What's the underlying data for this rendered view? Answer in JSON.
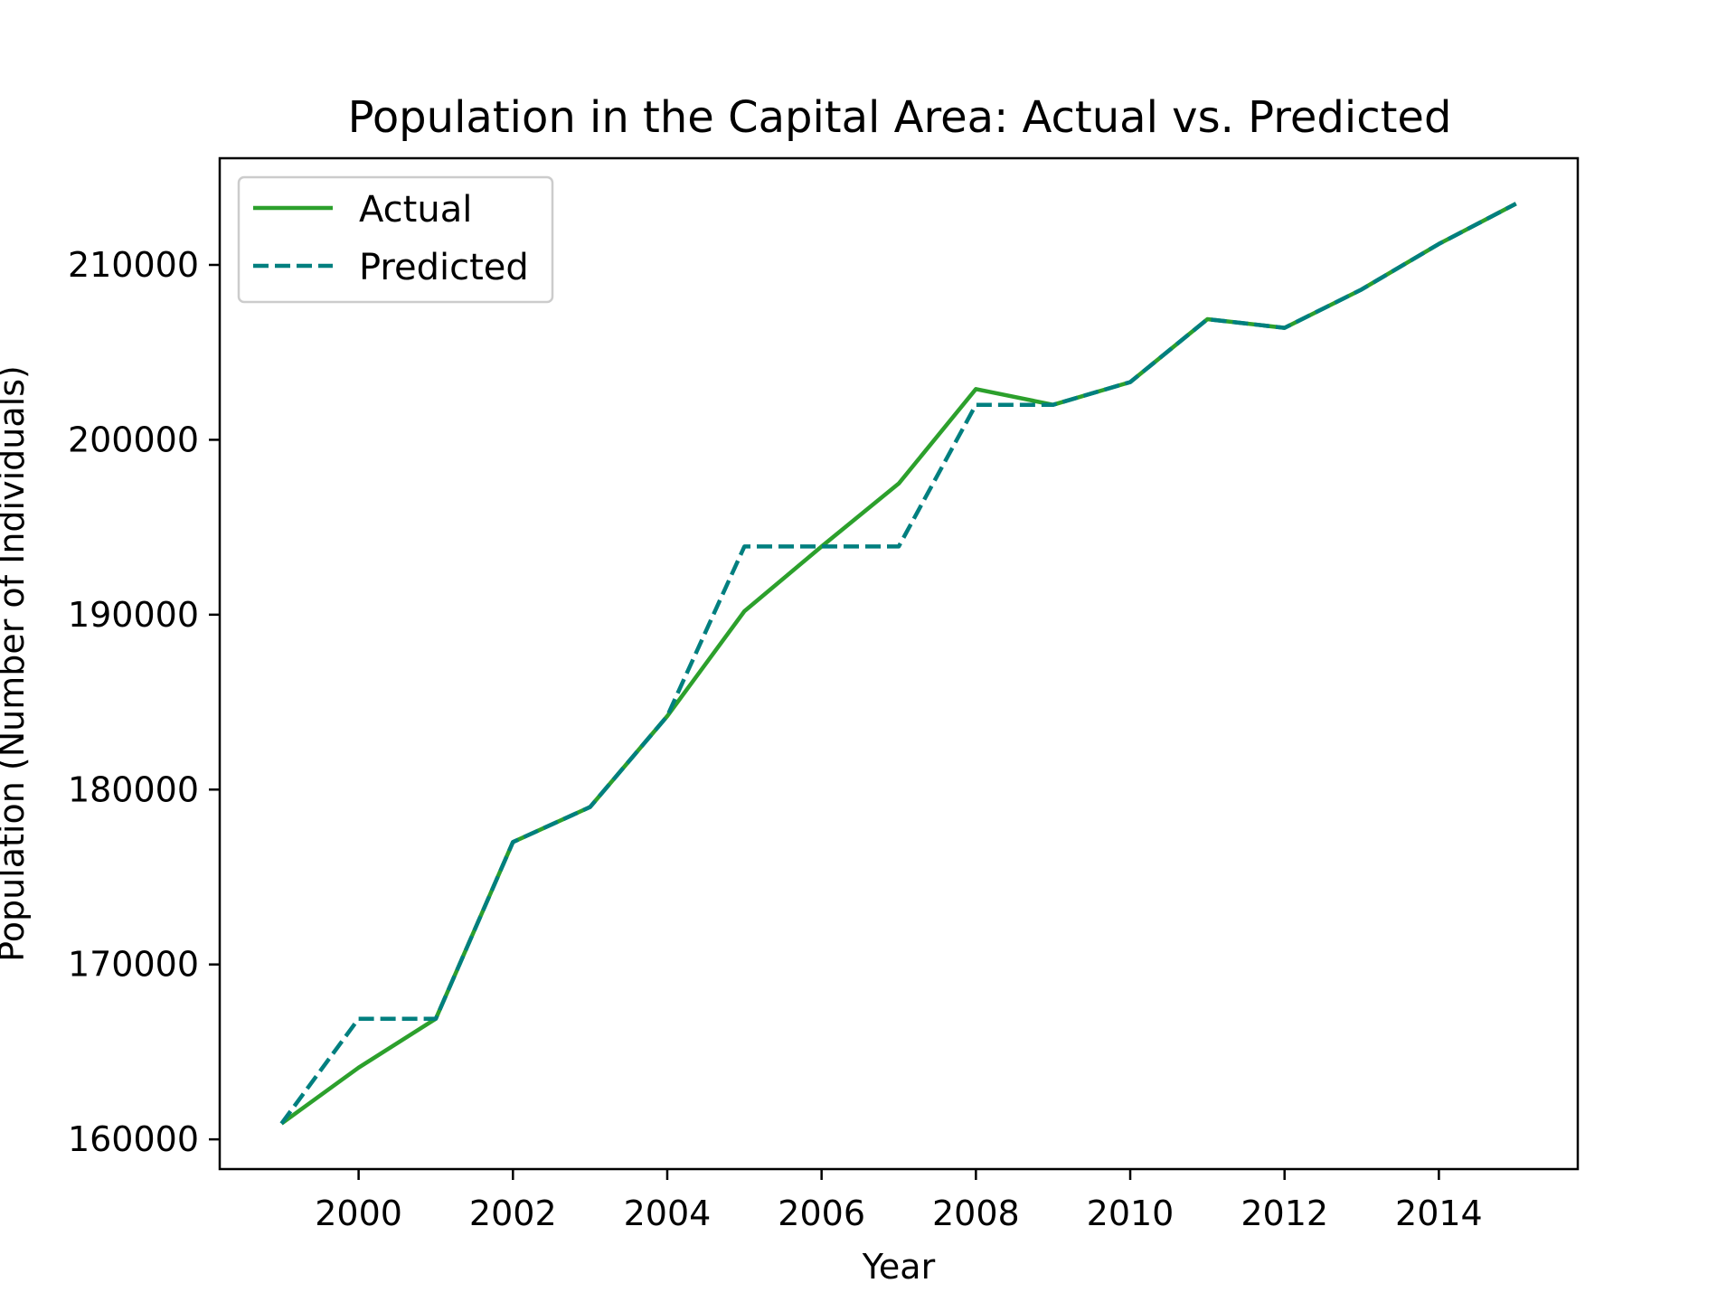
{
  "chart_data": {
    "type": "line",
    "title": "Population in the Capital Area: Actual vs. Predicted",
    "xlabel": "Year",
    "ylabel": "Population (Number of Individuals)",
    "x": [
      1999,
      2000,
      2001,
      2002,
      2003,
      2004,
      2005,
      2006,
      2007,
      2008,
      2009,
      2010,
      2011,
      2012,
      2013,
      2014,
      2015
    ],
    "series": [
      {
        "name": "Actual",
        "color": "#2ca02c",
        "style": "solid",
        "values": [
          160900,
          164100,
          166900,
          177000,
          179000,
          184200,
          190200,
          193900,
          197500,
          202900,
          202000,
          203300,
          206900,
          206400,
          208600,
          211200,
          213500
        ]
      },
      {
        "name": "Predicted",
        "color": "#007f7f",
        "style": "dashed",
        "values": [
          160900,
          166900,
          166900,
          177000,
          179000,
          184200,
          193900,
          193900,
          193900,
          202000,
          202000,
          203300,
          206900,
          206400,
          208600,
          211200,
          213500
        ]
      }
    ],
    "xticks": [
      2000,
      2002,
      2004,
      2006,
      2008,
      2010,
      2012,
      2014
    ],
    "xtick_labels": [
      "2000",
      "2002",
      "2004",
      "2006",
      "2008",
      "2010",
      "2012",
      "2014"
    ],
    "yticks": [
      160000,
      170000,
      180000,
      190000,
      200000,
      210000
    ],
    "ytick_labels": [
      "160000",
      "170000",
      "180000",
      "190000",
      "200000",
      "210000"
    ],
    "xlim": [
      1998.2,
      2015.8
    ],
    "ylim": [
      158300,
      216100
    ],
    "grid": false,
    "legend_position": "top-left"
  }
}
